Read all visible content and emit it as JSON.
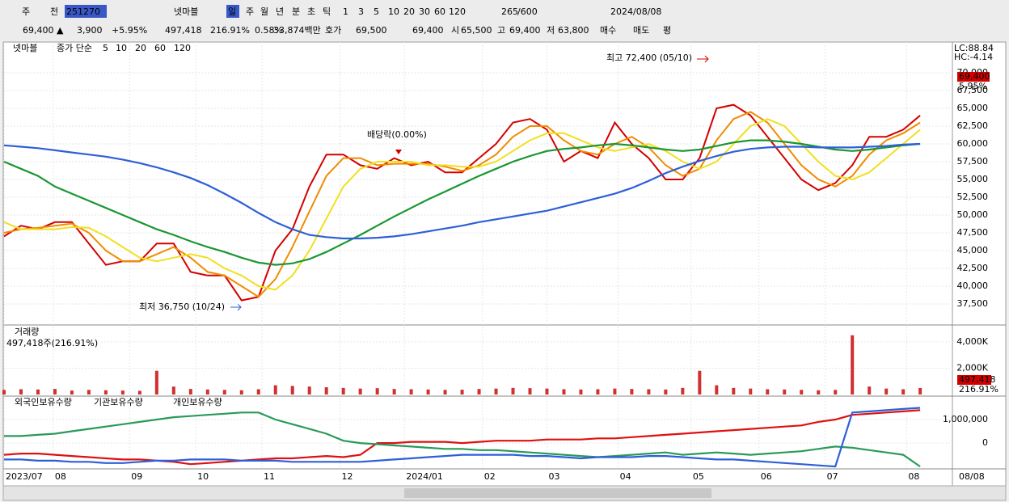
{
  "toolbar": {
    "row1": [
      "주",
      "전",
      "251270",
      "넷마블",
      "일",
      "주",
      "월",
      "년",
      "분",
      "초",
      "틱",
      "1",
      "3",
      "5",
      "10",
      "20",
      "30",
      "60",
      "120",
      "265",
      "/600",
      "2024/08/08"
    ],
    "row2": [
      "69,400 ▲",
      "3,900",
      "+5.95%",
      "497,418",
      "216.91%",
      "0.58%",
      "33,874백만",
      "호가",
      "69,500",
      "69,400",
      "시",
      "65,500",
      "고",
      "69,400",
      "저",
      "63,800",
      "매수",
      "매도",
      "평"
    ]
  },
  "price_side": [
    "LC:88.84",
    "HC:-4.14",
    "69,400",
    "5.95%"
  ],
  "x_axis": {
    "xlim": [
      0,
      55.9
    ],
    "xticks": [
      {
        "value": 0,
        "label": "2023/07"
      },
      {
        "value": 2.9,
        "label": "08"
      },
      {
        "value": 7.4,
        "label": "09"
      },
      {
        "value": 11.3,
        "label": "10"
      },
      {
        "value": 15.2,
        "label": "11"
      },
      {
        "value": 19.8,
        "label": "12"
      },
      {
        "value": 23.6,
        "label": "2024/01"
      },
      {
        "value": 28.2,
        "label": "02"
      },
      {
        "value": 32,
        "label": "03"
      },
      {
        "value": 36.2,
        "label": "04"
      },
      {
        "value": 40.5,
        "label": "05"
      },
      {
        "value": 44.5,
        "label": "06"
      },
      {
        "value": 48.4,
        "label": "07"
      },
      {
        "value": 53.2,
        "label": "08"
      }
    ],
    "last_date": "08/08"
  },
  "chart_data": [
    {
      "type": "line",
      "title": "넷마블",
      "legend_prefix": "종가 단순",
      "annotations": [
        "최고 72,400 (05/10)",
        "최저 36,750 (10/24)",
        "배당락(0.00%)"
      ],
      "x": [
        0,
        1,
        2,
        3,
        4,
        5,
        6,
        7,
        8,
        9,
        10,
        11,
        12,
        13,
        14,
        15,
        16,
        17,
        18,
        19,
        20,
        21,
        22,
        23,
        24,
        25,
        26,
        27,
        28,
        29,
        30,
        31,
        32,
        33,
        34,
        35,
        36,
        37,
        38,
        39,
        40,
        41,
        42,
        43,
        44,
        45,
        46,
        47,
        48,
        49,
        50,
        51,
        52,
        53,
        54
      ],
      "ylim": [
        34770,
        74320
      ],
      "yticks": [
        {
          "value": 37500,
          "label": "37,500"
        },
        {
          "value": 40000,
          "label": "40,000"
        },
        {
          "value": 42500,
          "label": "42,500"
        },
        {
          "value": 45000,
          "label": "45,000"
        },
        {
          "value": 47500,
          "label": "47,500"
        },
        {
          "value": 50000,
          "label": "50,000"
        },
        {
          "value": 52500,
          "label": "52,500"
        },
        {
          "value": 55000,
          "label": "55,000"
        },
        {
          "value": 57500,
          "label": "57,500"
        },
        {
          "value": 60000,
          "label": "60,000"
        },
        {
          "value": 62500,
          "label": "62,500"
        },
        {
          "value": 65000,
          "label": "65,000"
        },
        {
          "value": 67500,
          "label": "67,500"
        },
        {
          "value": 70000,
          "label": "70,000"
        }
      ],
      "grid": true,
      "series": [
        {
          "name": "5",
          "color": "#d40000",
          "values": [
            47000,
            48500,
            48000,
            49000,
            49000,
            46000,
            43000,
            43500,
            43500,
            46000,
            46000,
            42000,
            41500,
            41500,
            38000,
            38500,
            45000,
            48000,
            54000,
            58500,
            58500,
            57000,
            56500,
            58000,
            57000,
            57500,
            56000,
            56000,
            58000,
            60000,
            63000,
            63500,
            62000,
            57500,
            59000,
            58000,
            63000,
            60000,
            58000,
            55000,
            55000,
            58000,
            65000,
            65500,
            64000,
            61000,
            58000,
            55000,
            53500,
            54500,
            57000,
            61000,
            61000,
            62000,
            64000
          ]
        },
        {
          "name": "10",
          "color": "#f08c00",
          "values": [
            47500,
            48000,
            48200,
            48500,
            48800,
            47500,
            45000,
            43500,
            43500,
            44500,
            45500,
            44000,
            42000,
            41500,
            40000,
            38500,
            41000,
            45500,
            50500,
            55500,
            58000,
            58000,
            57000,
            57200,
            57200,
            57200,
            56800,
            56200,
            57000,
            58500,
            61000,
            62500,
            62500,
            60500,
            59000,
            58500,
            60000,
            61000,
            59500,
            57000,
            55500,
            56500,
            60500,
            63500,
            64500,
            63000,
            60000,
            57000,
            55000,
            54000,
            55500,
            58500,
            60500,
            61500,
            63000
          ]
        },
        {
          "name": "20",
          "color": "#f0e020",
          "values": [
            49000,
            48000,
            48000,
            48000,
            48300,
            48200,
            47000,
            45500,
            44000,
            43500,
            44000,
            44500,
            44000,
            42500,
            41500,
            40000,
            39500,
            41500,
            45000,
            49500,
            54000,
            56500,
            57500,
            57500,
            57500,
            57000,
            57000,
            56800,
            56800,
            57500,
            59000,
            60500,
            61500,
            61500,
            60500,
            59500,
            59000,
            59500,
            60000,
            59000,
            57500,
            56500,
            57500,
            60000,
            62500,
            63500,
            62500,
            60000,
            57500,
            55500,
            55000,
            56000,
            58000,
            60000,
            62000
          ]
        },
        {
          "name": "60",
          "color": "#1a9632",
          "values": [
            57500,
            56500,
            55500,
            54000,
            53000,
            52000,
            51000,
            50000,
            49000,
            48000,
            47200,
            46300,
            45500,
            44800,
            44000,
            43300,
            43000,
            43200,
            43800,
            44800,
            46000,
            47200,
            48500,
            49800,
            51000,
            52200,
            53300,
            54400,
            55500,
            56500,
            57500,
            58300,
            59000,
            59300,
            59500,
            59800,
            60000,
            59800,
            59500,
            59200,
            59000,
            59200,
            59700,
            60200,
            60500,
            60500,
            60300,
            60000,
            59600,
            59200,
            59000,
            59200,
            59500,
            59800,
            60000
          ]
        },
        {
          "name": "120",
          "color": "#2e5fd8",
          "values": [
            59800,
            59600,
            59400,
            59100,
            58800,
            58500,
            58200,
            57800,
            57300,
            56700,
            56000,
            55200,
            54200,
            53000,
            51700,
            50300,
            49000,
            48000,
            47200,
            46900,
            46700,
            46700,
            46800,
            47000,
            47300,
            47700,
            48100,
            48500,
            49000,
            49400,
            49800,
            50200,
            50600,
            51200,
            51800,
            52400,
            53000,
            53800,
            54800,
            55900,
            56800,
            57600,
            58300,
            58900,
            59300,
            59500,
            59600,
            59600,
            59500,
            59500,
            59500,
            59600,
            59700,
            59900,
            60000
          ]
        }
      ]
    },
    {
      "type": "bar",
      "title": "거래량",
      "subtitle": "497,418주(216.91%)",
      "side_labels": [
        "497,418",
        "216.91%"
      ],
      "color": "#d03030",
      "x": [
        0,
        1,
        2,
        3,
        4,
        5,
        6,
        7,
        8,
        9,
        10,
        11,
        12,
        13,
        14,
        15,
        16,
        17,
        18,
        19,
        20,
        21,
        22,
        23,
        24,
        25,
        26,
        27,
        28,
        29,
        30,
        31,
        32,
        33,
        34,
        35,
        36,
        37,
        38,
        39,
        40,
        41,
        42,
        43,
        44,
        45,
        46,
        47,
        48,
        49,
        50,
        51,
        52,
        53,
        54
      ],
      "values": [
        350,
        400,
        380,
        420,
        300,
        350,
        320,
        300,
        280,
        1800,
        600,
        420,
        380,
        350,
        320,
        400,
        700,
        650,
        600,
        550,
        500,
        450,
        480,
        420,
        400,
        380,
        350,
        360,
        420,
        450,
        500,
        480,
        450,
        400,
        380,
        400,
        450,
        420,
        400,
        380,
        500,
        1800,
        700,
        500,
        450,
        400,
        380,
        350,
        320,
        350,
        4500,
        600,
        450,
        400,
        497.418
      ],
      "ylim": [
        0,
        5100
      ],
      "yticks": [
        {
          "value": 2000,
          "label": "2,000K"
        },
        {
          "value": 4000,
          "label": "4,000K"
        }
      ],
      "grid": true
    },
    {
      "type": "line",
      "x": [
        0,
        1,
        2,
        3,
        4,
        5,
        6,
        7,
        8,
        9,
        10,
        11,
        12,
        13,
        14,
        15,
        16,
        17,
        18,
        19,
        20,
        21,
        22,
        23,
        24,
        25,
        26,
        27,
        28,
        29,
        30,
        31,
        32,
        33,
        34,
        35,
        36,
        37,
        38,
        39,
        40,
        41,
        42,
        43,
        44,
        45,
        46,
        47,
        48,
        49,
        50,
        51,
        52,
        53,
        54
      ],
      "ylim": [
        -1030000,
        1930000
      ],
      "yticks": [
        {
          "value": 1000000,
          "label": "1,000,000"
        },
        0
      ],
      "grid": true,
      "series": [
        {
          "name": "외국인보유수량",
          "color": "#e01010",
          "values": [
            -500000,
            -450000,
            -450000,
            -500000,
            -550000,
            -600000,
            -650000,
            -700000,
            -700000,
            -750000,
            -800000,
            -900000,
            -850000,
            -800000,
            -750000,
            -700000,
            -650000,
            -650000,
            -600000,
            -550000,
            -600000,
            -500000,
            0,
            0,
            50000,
            50000,
            50000,
            0,
            50000,
            100000,
            100000,
            100000,
            150000,
            150000,
            150000,
            200000,
            200000,
            250000,
            300000,
            350000,
            400000,
            450000,
            500000,
            550000,
            600000,
            650000,
            700000,
            750000,
            900000,
            1000000,
            1200000,
            1250000,
            1300000,
            1350000,
            1400000
          ]
        },
        {
          "name": "기관보유수량",
          "color": "#2a9a5a",
          "values": [
            300000,
            300000,
            350000,
            400000,
            500000,
            600000,
            700000,
            800000,
            900000,
            1000000,
            1100000,
            1150000,
            1200000,
            1250000,
            1300000,
            1300000,
            1000000,
            800000,
            600000,
            400000,
            100000,
            0,
            -50000,
            -100000,
            -150000,
            -200000,
            -250000,
            -250000,
            -300000,
            -300000,
            -350000,
            -400000,
            -450000,
            -500000,
            -550000,
            -600000,
            -550000,
            -500000,
            -450000,
            -400000,
            -500000,
            -450000,
            -400000,
            -450000,
            -500000,
            -450000,
            -400000,
            -350000,
            -250000,
            -150000,
            -200000,
            -300000,
            -400000,
            -500000,
            -1000000
          ]
        },
        {
          "name": "개인보유수량",
          "color": "#2e5fd8",
          "values": [
            -700000,
            -700000,
            -750000,
            -750000,
            -800000,
            -800000,
            -850000,
            -850000,
            -800000,
            -750000,
            -750000,
            -700000,
            -700000,
            -700000,
            -750000,
            -750000,
            -750000,
            -800000,
            -800000,
            -800000,
            -800000,
            -800000,
            -750000,
            -700000,
            -650000,
            -600000,
            -550000,
            -500000,
            -500000,
            -500000,
            -500000,
            -550000,
            -550000,
            -600000,
            -650000,
            -600000,
            -600000,
            -600000,
            -550000,
            -550000,
            -600000,
            -650000,
            -700000,
            -700000,
            -750000,
            -800000,
            -850000,
            -900000,
            -950000,
            -1000000,
            1300000,
            1350000,
            1400000,
            1450000,
            1500000
          ]
        }
      ]
    }
  ]
}
